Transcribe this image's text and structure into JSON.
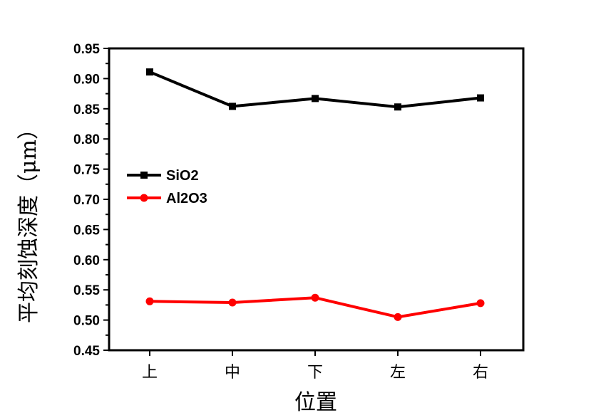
{
  "chart_data": {
    "type": "line",
    "xlabel": "位置",
    "ylabel": "平均刻蚀深度（μm）",
    "categories": [
      "上",
      "中",
      "下",
      "左",
      "右"
    ],
    "ylim": [
      0.45,
      0.95
    ],
    "yticks": [
      "0.45",
      "0.50",
      "0.55",
      "0.60",
      "0.65",
      "0.70",
      "0.75",
      "0.80",
      "0.85",
      "0.90",
      "0.95"
    ],
    "legend_position": "left",
    "grid": false,
    "series": [
      {
        "name": "SiO2",
        "color": "#000000",
        "marker": "square",
        "values": [
          0.911,
          0.854,
          0.867,
          0.853,
          0.868
        ]
      },
      {
        "name": "Al2O3",
        "color": "#ff0000",
        "marker": "circle",
        "values": [
          0.531,
          0.529,
          0.537,
          0.505,
          0.528
        ]
      }
    ]
  }
}
